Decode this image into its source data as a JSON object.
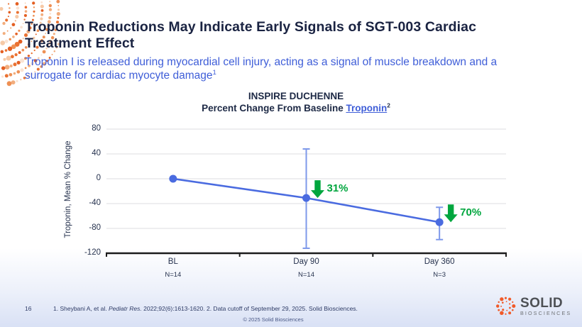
{
  "header": {
    "title_lines": [
      "Troponin Reductions May Indicate Early Signals of SGT-003 Cardiac",
      "Treatment Effect"
    ],
    "subtitle_lines": [
      "Troponin I is released during myocardial cell injury, acting as a signal of muscle breakdown and a",
      "surrogate for cardiac myocyte damage"
    ],
    "subtitle_superscript": "1"
  },
  "chart_data": {
    "type": "line",
    "title": "INSPIRE DUCHENNE",
    "subtitle_prefix": "Percent Change From Baseline ",
    "subtitle_link": "Troponin",
    "subtitle_superscript": "2",
    "ylabel": "Troponin, Mean % Change",
    "categories": [
      "BL",
      "Day 90",
      "Day 360"
    ],
    "n_labels": [
      "N=14",
      "N=14",
      "N=3"
    ],
    "values": [
      0,
      -31,
      -70
    ],
    "error_bars": [
      null,
      {
        "high": 48,
        "low": -112
      },
      {
        "high": -46,
        "low": -98
      }
    ],
    "annotations": [
      {
        "index": 1,
        "label": "31%"
      },
      {
        "index": 2,
        "label": "70%"
      }
    ],
    "yticks": [
      80,
      40,
      0,
      -40,
      -80,
      -120
    ],
    "ylim": [
      -120,
      80
    ],
    "grid": true,
    "legend": "none",
    "colors": {
      "line": "#4a6be0",
      "marker": "#4a6be0",
      "error_bar": "#7e99ea",
      "annotation_green": "#00a63e",
      "grid": "#e4e4e8",
      "axis": "#1c1c1c",
      "title_navy": "#1a2342",
      "subtitle_blue": "#3f5ed8",
      "brand_orange": "#f15a29"
    }
  },
  "footer": {
    "page_number": "16",
    "citation_part1": "1. Sheybani A, et al. ",
    "citation_journal": "Pediatr Res.",
    "citation_part2": " 2022;92(6):1613-1620. 2. Data cutoff of September 29, 2025. Solid Biosciences.",
    "copyright": "© 2025 Solid Biosciences"
  },
  "logo": {
    "name": "SOLID",
    "tagline": "BIOSCIENCES"
  }
}
